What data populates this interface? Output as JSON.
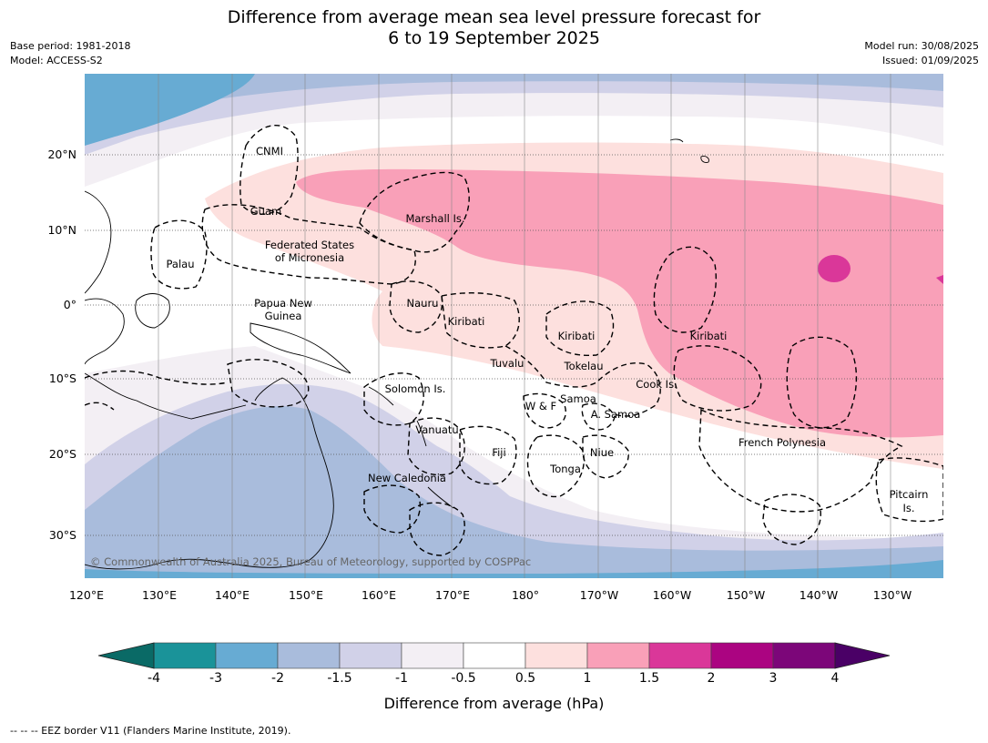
{
  "title_line1": "Difference from average mean sea level pressure forecast for",
  "title_line2": "6 to 19 September 2025",
  "base_period": "Base period: 1981-2018",
  "model": "Model: ACCESS-S2",
  "model_run": "Model run: 30/08/2025",
  "issued": "Issued: 01/09/2025",
  "copyright": "© Commonwealth of Australia 2025, Bureau of Meteorology, supported by COSPPac",
  "lon_labels": [
    "120°E",
    "130°E",
    "140°E",
    "150°E",
    "160°E",
    "170°E",
    "180°",
    "170°W",
    "160°W",
    "150°W",
    "140°W",
    "130°W"
  ],
  "lat_labels": [
    "20°N",
    "10°N",
    "0°",
    "10°S",
    "20°S",
    "30°S"
  ],
  "region_labels": [
    {
      "text": "CNMI"
    },
    {
      "text": "Guam"
    },
    {
      "text": "Marshall Is."
    },
    {
      "text": "Federated States"
    },
    {
      "text": "of Micronesia"
    },
    {
      "text": "Palau"
    },
    {
      "text": "Papua New"
    },
    {
      "text": "Guinea"
    },
    {
      "text": "Nauru"
    },
    {
      "text": "Kiribati"
    },
    {
      "text": "Kiribati"
    },
    {
      "text": "Kiribati"
    },
    {
      "text": "Tuvalu"
    },
    {
      "text": "Tokelau"
    },
    {
      "text": "Cook Is."
    },
    {
      "text": "Solomon Is."
    },
    {
      "text": "Samoa"
    },
    {
      "text": "W & F"
    },
    {
      "text": "A. Samoa"
    },
    {
      "text": "Vanuatu"
    },
    {
      "text": "Fiji"
    },
    {
      "text": "Niue"
    },
    {
      "text": "French Polynesia"
    },
    {
      "text": "Tonga"
    },
    {
      "text": "New Caledonia"
    },
    {
      "text": "Pitcairn"
    },
    {
      "text": "Is."
    }
  ],
  "colorbar": {
    "labels": [
      "-4",
      "-3",
      "-2",
      "-1.5",
      "-1",
      "-0.5",
      "0.5",
      "1",
      "1.5",
      "2",
      "3",
      "4"
    ],
    "colors": [
      "#1a9399",
      "#67abd3",
      "#a9bcdc",
      "#d1d1e8",
      "#f3eff4",
      "#ffffff",
      "#fde0de",
      "#f9a0b8",
      "#da3799",
      "#ab0481",
      "#7c0679"
    ],
    "under_color": "#0a6a66",
    "over_color": "#4a0066",
    "title": "Difference from average (hPa)"
  },
  "footnote": "--  --  -- EEZ border V11 (Flanders Marine Institute, 2019)."
}
